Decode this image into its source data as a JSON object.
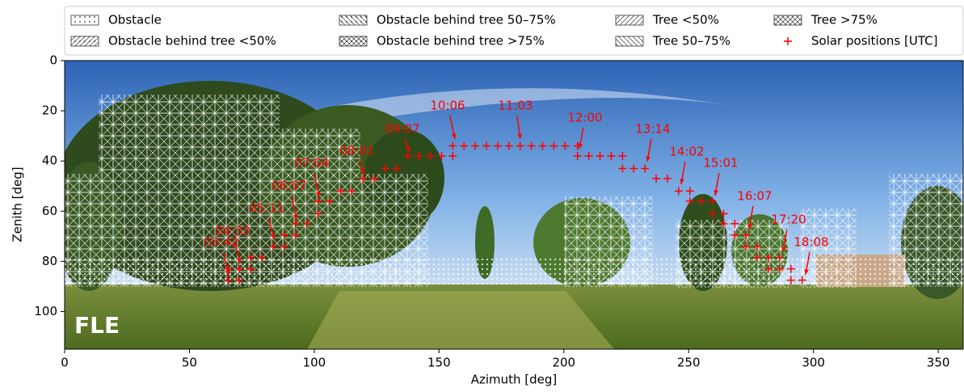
{
  "chart_data": {
    "type": "scatter",
    "xlabel": "Azimuth [deg]",
    "ylabel": "Zenith [deg]",
    "xlim": [
      0,
      360
    ],
    "ylim": [
      115,
      0
    ],
    "xticks": [
      0,
      50,
      100,
      150,
      200,
      250,
      300,
      350
    ],
    "yticks": [
      0,
      20,
      40,
      60,
      80,
      100
    ],
    "site_label": "FLE",
    "legend": [
      "Obstacle",
      "Obstacle behind tree <50%",
      "Obstacle behind tree 50–75%",
      "Obstacle behind tree >75%",
      "Tree <50%",
      "Tree 50–75%",
      "Tree >75%"
    ],
    "series": [
      {
        "name": "Solar positions [UTC]",
        "color": "#ff0000",
        "marker": "+",
        "x": [
          65.5,
          65.5,
          70,
          70,
          74.5,
          74.5,
          79,
          83.5,
          88,
          88,
          92.5,
          92.5,
          97,
          101.5,
          101.5,
          106,
          110.5,
          115,
          119.5,
          124,
          128.5,
          133,
          137.5,
          142,
          146.5,
          151,
          155.5,
          155.5,
          160,
          164.5,
          169,
          173.5,
          178,
          182.5,
          187,
          191.5,
          196,
          200.5,
          205.5,
          205.5,
          210,
          214.5,
          219,
          223.5,
          223.5,
          228,
          232.5,
          237,
          241.5,
          246,
          250.5,
          250.5,
          255,
          259.5,
          259.5,
          264,
          264,
          268.5,
          268.5,
          273,
          273,
          277.5,
          277.5,
          282,
          286.5,
          282,
          286.5,
          291,
          291,
          295.5
        ],
        "y": [
          87.5,
          83,
          87.5,
          83,
          83,
          78.5,
          78.5,
          74,
          74,
          69.5,
          69.5,
          65,
          65,
          61,
          56,
          56,
          52,
          52,
          47,
          47,
          43,
          43,
          38,
          38,
          38,
          38,
          38,
          34,
          34,
          34,
          34,
          34,
          34,
          34,
          34,
          34,
          34,
          34,
          34,
          38,
          38,
          38,
          38,
          38,
          43,
          43,
          43,
          47,
          47,
          52,
          52,
          56,
          56,
          56,
          61,
          61,
          65,
          65,
          69.5,
          69.5,
          74,
          74,
          78.5,
          78.5,
          78.5,
          83,
          83,
          83,
          87.5,
          87.5
        ]
      }
    ],
    "annotations": [
      "03:42",
      "04:33",
      "05:11",
      "06:07",
      "07:04",
      "08:01",
      "09:07",
      "10:06",
      "11:03",
      "12:00",
      "13:14",
      "14:02",
      "15:01",
      "16:07",
      "17:20",
      "18:08"
    ]
  }
}
